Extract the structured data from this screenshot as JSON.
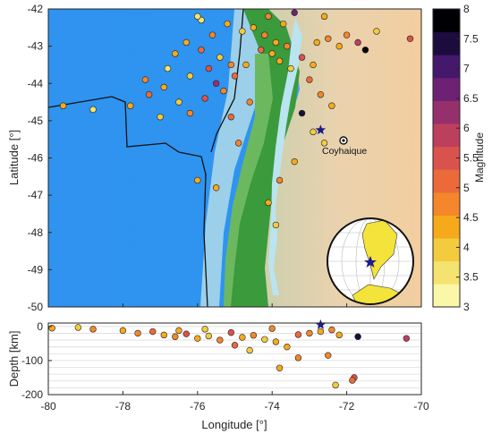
{
  "chart_data": [
    {
      "type": "scatter",
      "panel": "map",
      "xlim": [
        -80,
        -70
      ],
      "ylim": [
        -50,
        -42
      ],
      "ylabel": "Latitude [°]",
      "yticks": [
        -42,
        -43,
        -44,
        -45,
        -46,
        -47,
        -48,
        -49,
        -50
      ],
      "city": {
        "name": "Coyhaique",
        "lon": -72.07,
        "lat": -45.57
      },
      "stars": [
        {
          "lon": -72.7,
          "lat": -45.25
        }
      ],
      "colorbar": {
        "label": "Magnitude",
        "range": [
          3,
          8
        ],
        "ticks": [
          "8",
          "7.5",
          "7",
          "6.5",
          "6",
          "5.5",
          "5",
          "4.5",
          "4",
          "3.5",
          "3"
        ],
        "colors": [
          "#fbf7a9",
          "#f5e371",
          "#f2cc3e",
          "#f6aa1b",
          "#f4862b",
          "#ec6a3a",
          "#d9534c",
          "#bd3f5e",
          "#96306d",
          "#6e2174",
          "#44186b",
          "#1c0c3e",
          "#000004"
        ]
      },
      "points": [
        {
          "lon": -75.2,
          "lat": -42.4,
          "mag": 4.2
        },
        {
          "lon": -74.8,
          "lat": -42.6,
          "mag": 3.8
        },
        {
          "lon": -75.6,
          "lat": -42.7,
          "mag": 4.6
        },
        {
          "lon": -76.3,
          "lat": -42.9,
          "mag": 4.4
        },
        {
          "lon": -75.9,
          "lat": -43.1,
          "mag": 5.1
        },
        {
          "lon": -75.4,
          "lat": -43.3,
          "mag": 4.0
        },
        {
          "lon": -75.1,
          "lat": -43.5,
          "mag": 4.8
        },
        {
          "lon": -76.6,
          "lat": -43.2,
          "mag": 4.3
        },
        {
          "lon": -75.7,
          "lat": -43.6,
          "mag": 5.4
        },
        {
          "lon": -76.2,
          "lat": -43.8,
          "mag": 4.1
        },
        {
          "lon": -75.5,
          "lat": -44.0,
          "mag": 6.2
        },
        {
          "lon": -76.9,
          "lat": -44.1,
          "mag": 4.5
        },
        {
          "lon": -77.3,
          "lat": -44.3,
          "mag": 5.0
        },
        {
          "lon": -76.5,
          "lat": -44.5,
          "mag": 3.9
        },
        {
          "lon": -75.8,
          "lat": -44.4,
          "mag": 5.6
        },
        {
          "lon": -75.3,
          "lat": -44.2,
          "mag": 4.7
        },
        {
          "lon": -77.8,
          "lat": -44.6,
          "mag": 4.2
        },
        {
          "lon": -76.2,
          "lat": -44.8,
          "mag": 4.9
        },
        {
          "lon": -75.1,
          "lat": -44.9,
          "mag": 5.2
        },
        {
          "lon": -78.8,
          "lat": -44.7,
          "mag": 3.7
        },
        {
          "lon": -79.6,
          "lat": -44.6,
          "mag": 4.4
        },
        {
          "lon": -77.0,
          "lat": -44.9,
          "mag": 4.0
        },
        {
          "lon": -75.9,
          "lat": -42.3,
          "mag": 3.6
        },
        {
          "lon": -76.0,
          "lat": -42.2,
          "mag": 3.4
        },
        {
          "lon": -74.5,
          "lat": -42.5,
          "mag": 4.3
        },
        {
          "lon": -74.2,
          "lat": -42.7,
          "mag": 4.6
        },
        {
          "lon": -73.9,
          "lat": -42.9,
          "mag": 4.5
        },
        {
          "lon": -74.0,
          "lat": -43.2,
          "mag": 4.4
        },
        {
          "lon": -73.6,
          "lat": -43.0,
          "mag": 4.8
        },
        {
          "lon": -73.8,
          "lat": -43.4,
          "mag": 4.2
        },
        {
          "lon": -74.3,
          "lat": -43.1,
          "mag": 5.0
        },
        {
          "lon": -73.5,
          "lat": -43.6,
          "mag": 4.1
        },
        {
          "lon": -73.2,
          "lat": -43.3,
          "mag": 5.5
        },
        {
          "lon": -74.1,
          "lat": -42.2,
          "mag": 4.7
        },
        {
          "lon": -73.7,
          "lat": -42.4,
          "mag": 4.3
        },
        {
          "lon": -73.4,
          "lat": -42.1,
          "mag": 6.7
        },
        {
          "lon": -72.8,
          "lat": -42.9,
          "mag": 4.5
        },
        {
          "lon": -72.5,
          "lat": -42.8,
          "mag": 4.6
        },
        {
          "lon": -72.2,
          "lat": -43.0,
          "mag": 4.2
        },
        {
          "lon": -72.0,
          "lat": -42.7,
          "mag": 4.9
        },
        {
          "lon": -71.7,
          "lat": -42.9,
          "mag": 5.8
        },
        {
          "lon": -71.5,
          "lat": -43.1,
          "mag": 7.8
        },
        {
          "lon": -71.2,
          "lat": -42.6,
          "mag": 4.0
        },
        {
          "lon": -70.3,
          "lat": -42.8,
          "mag": 5.4
        },
        {
          "lon": -72.6,
          "lat": -42.2,
          "mag": 4.4
        },
        {
          "lon": -72.9,
          "lat": -43.5,
          "mag": 4.3
        },
        {
          "lon": -73.0,
          "lat": -43.9,
          "mag": 5.1
        },
        {
          "lon": -72.7,
          "lat": -44.3,
          "mag": 4.8
        },
        {
          "lon": -72.4,
          "lat": -44.6,
          "mag": 4.5
        },
        {
          "lon": -73.2,
          "lat": -44.8,
          "mag": 7.4
        },
        {
          "lon": -72.9,
          "lat": -45.3,
          "mag": 3.8
        },
        {
          "lon": -72.6,
          "lat": -45.6,
          "mag": 4.1
        },
        {
          "lon": -73.4,
          "lat": -46.1,
          "mag": 4.4
        },
        {
          "lon": -73.8,
          "lat": -46.6,
          "mag": 4.6
        },
        {
          "lon": -74.1,
          "lat": -47.2,
          "mag": 4.2
        },
        {
          "lon": -73.9,
          "lat": -47.8,
          "mag": 4.0
        },
        {
          "lon": -75.5,
          "lat": -46.8,
          "mag": 4.5
        },
        {
          "lon": -76.0,
          "lat": -46.6,
          "mag": 4.3
        },
        {
          "lon": -74.9,
          "lat": -45.6,
          "mag": 4.9
        },
        {
          "lon": -74.6,
          "lat": -44.5,
          "mag": 4.7
        },
        {
          "lon": -76.8,
          "lat": -43.6,
          "mag": 3.5
        },
        {
          "lon": -77.4,
          "lat": -43.9,
          "mag": 4.6
        },
        {
          "lon": -75.0,
          "lat": -43.8,
          "mag": 5.3
        },
        {
          "lon": -74.7,
          "lat": -43.5,
          "mag": 4.2
        }
      ]
    },
    {
      "type": "scatter",
      "panel": "depth",
      "xlabel": "Longitude [°]",
      "ylabel": "Depth [km]",
      "xlim": [
        -80,
        -70
      ],
      "ylim": [
        -200,
        10
      ],
      "xticks": [
        -80,
        -78,
        -76,
        -74,
        -72,
        -70
      ],
      "yticks": [
        0,
        -100,
        -200
      ],
      "stars": [
        {
          "lon": -72.7,
          "depth": 5
        }
      ],
      "points": [
        {
          "lon": -79.9,
          "depth": -5,
          "mag": 4.5
        },
        {
          "lon": -79.2,
          "depth": -3,
          "mag": 4.0
        },
        {
          "lon": -78.8,
          "depth": -8,
          "mag": 4.8
        },
        {
          "lon": -78.0,
          "depth": -12,
          "mag": 4.3
        },
        {
          "lon": -77.6,
          "depth": -20,
          "mag": 4.6
        },
        {
          "lon": -77.2,
          "depth": -15,
          "mag": 5.0
        },
        {
          "lon": -76.9,
          "depth": -25,
          "mag": 4.2
        },
        {
          "lon": -76.6,
          "depth": -30,
          "mag": 4.7
        },
        {
          "lon": -76.3,
          "depth": -22,
          "mag": 5.4
        },
        {
          "lon": -76.0,
          "depth": -35,
          "mag": 4.4
        },
        {
          "lon": -75.7,
          "depth": -28,
          "mag": 4.1
        },
        {
          "lon": -75.4,
          "depth": -40,
          "mag": 4.9
        },
        {
          "lon": -75.1,
          "depth": -18,
          "mag": 5.6
        },
        {
          "lon": -74.8,
          "depth": -32,
          "mag": 4.3
        },
        {
          "lon": -74.5,
          "depth": -26,
          "mag": 4.6
        },
        {
          "lon": -74.2,
          "depth": -38,
          "mag": 4.0
        },
        {
          "lon": -73.9,
          "depth": -45,
          "mag": 4.5
        },
        {
          "lon": -73.6,
          "depth": -60,
          "mag": 4.2
        },
        {
          "lon": -73.3,
          "depth": -24,
          "mag": 5.1
        },
        {
          "lon": -73.0,
          "depth": -20,
          "mag": 4.8
        },
        {
          "lon": -72.7,
          "depth": -15,
          "mag": 4.4
        },
        {
          "lon": -72.4,
          "depth": -10,
          "mag": 4.6
        },
        {
          "lon": -72.2,
          "depth": -25,
          "mag": 4.2
        },
        {
          "lon": -71.7,
          "depth": -30,
          "mag": 7.6
        },
        {
          "lon": -71.8,
          "depth": -150,
          "mag": 5.5
        },
        {
          "lon": -71.85,
          "depth": -158,
          "mag": 5.1
        },
        {
          "lon": -72.3,
          "depth": -172,
          "mag": 4.0
        },
        {
          "lon": -73.8,
          "depth": -122,
          "mag": 4.3
        },
        {
          "lon": -73.3,
          "depth": -92,
          "mag": 4.6
        },
        {
          "lon": -72.5,
          "depth": -85,
          "mag": 4.9
        },
        {
          "lon": -74.6,
          "depth": -70,
          "mag": 4.1
        },
        {
          "lon": -75.0,
          "depth": -55,
          "mag": 5.0
        },
        {
          "lon": -70.4,
          "depth": -35,
          "mag": 5.7
        },
        {
          "lon": -76.5,
          "depth": -12,
          "mag": 4.4
        },
        {
          "lon": -75.8,
          "depth": -8,
          "mag": 4.0
        },
        {
          "lon": -74.0,
          "depth": -6,
          "mag": 4.7
        }
      ]
    }
  ]
}
